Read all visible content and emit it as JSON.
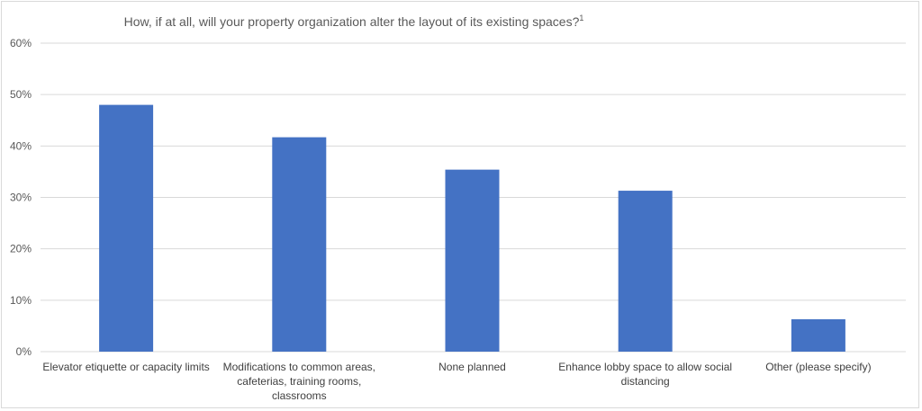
{
  "chart_data": {
    "type": "bar",
    "title": "How, if at all, will your property organization alter the layout of its existing spaces?",
    "title_superscript": "1",
    "categories": [
      [
        "Elevator etiquette or capacity limits"
      ],
      [
        "Modifications to common areas,",
        "cafeterias, training rooms,",
        "classrooms"
      ],
      [
        "None planned"
      ],
      [
        "Enhance lobby space to allow social",
        "distancing"
      ],
      [
        "Other (please specify)"
      ]
    ],
    "values": [
      48,
      41.7,
      35.4,
      31.3,
      6.3
    ],
    "ylim": [
      0,
      60
    ],
    "yticks": [
      "0%",
      "10%",
      "20%",
      "30%",
      "40%",
      "50%",
      "60%"
    ],
    "grid": true,
    "legend": false,
    "bar_color": "#4472c4",
    "grid_color": "#d9d9d9"
  }
}
